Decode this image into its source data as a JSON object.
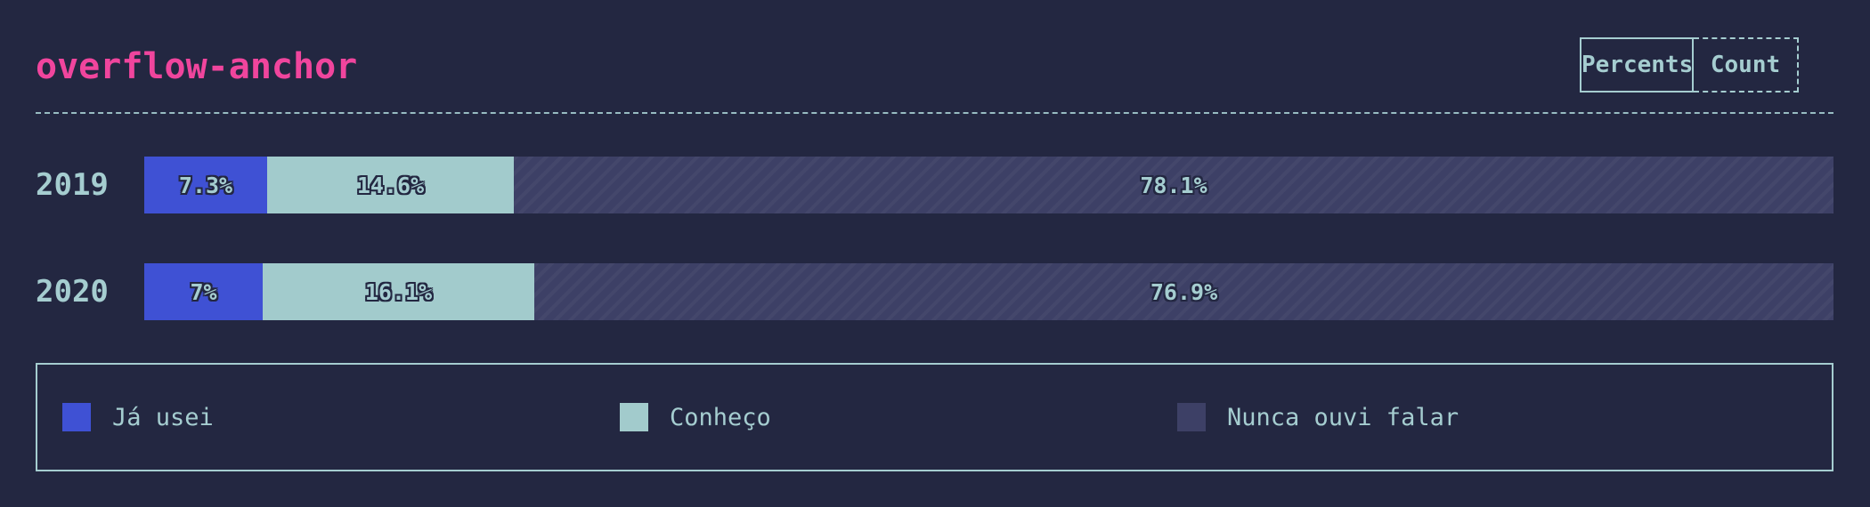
{
  "header": {
    "title": "overflow-anchor"
  },
  "toggle": {
    "percents_label": "Percents",
    "count_label": "Count",
    "selected": "Percents"
  },
  "colors": {
    "background": "#232741",
    "title": "#f0459d",
    "text": "#a5cdd0",
    "used": "#3f51d4",
    "known": "#a2cbcc",
    "never_heard": "#3d4066"
  },
  "legend": {
    "items": [
      {
        "label": "Já usei",
        "color": "#3f51d4"
      },
      {
        "label": "Conheço",
        "color": "#a2cbcc"
      },
      {
        "label": "Nunca ouvi falar",
        "color": "#3d4066"
      }
    ]
  },
  "chart_data": {
    "type": "bar",
    "orientation": "horizontal",
    "stacked": true,
    "normalized": true,
    "categories": [
      "2019",
      "2020"
    ],
    "series": [
      {
        "name": "Já usei",
        "values": [
          7.3,
          7.0
        ],
        "labels": [
          "7.3%",
          "7%"
        ]
      },
      {
        "name": "Conheço",
        "values": [
          14.6,
          16.1
        ],
        "labels": [
          "14.6%",
          "16.1%"
        ]
      },
      {
        "name": "Nunca ouvi falar",
        "values": [
          78.1,
          76.9
        ],
        "labels": [
          "78.1%",
          "76.9%"
        ]
      }
    ],
    "xlim": [
      0,
      100
    ],
    "legend_position": "bottom",
    "grid": false
  }
}
